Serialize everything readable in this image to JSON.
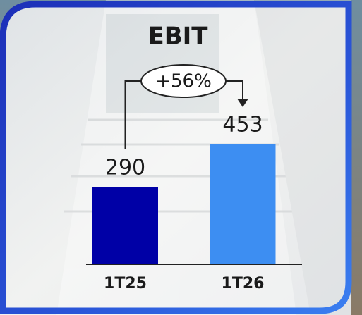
{
  "chart_data": {
    "type": "bar",
    "title": "EBIT",
    "categories": [
      "1T25",
      "1T26"
    ],
    "values": [
      290,
      453
    ],
    "colors": [
      "#0000a6",
      "#3d8ef2"
    ],
    "annotation": "+56%"
  }
}
